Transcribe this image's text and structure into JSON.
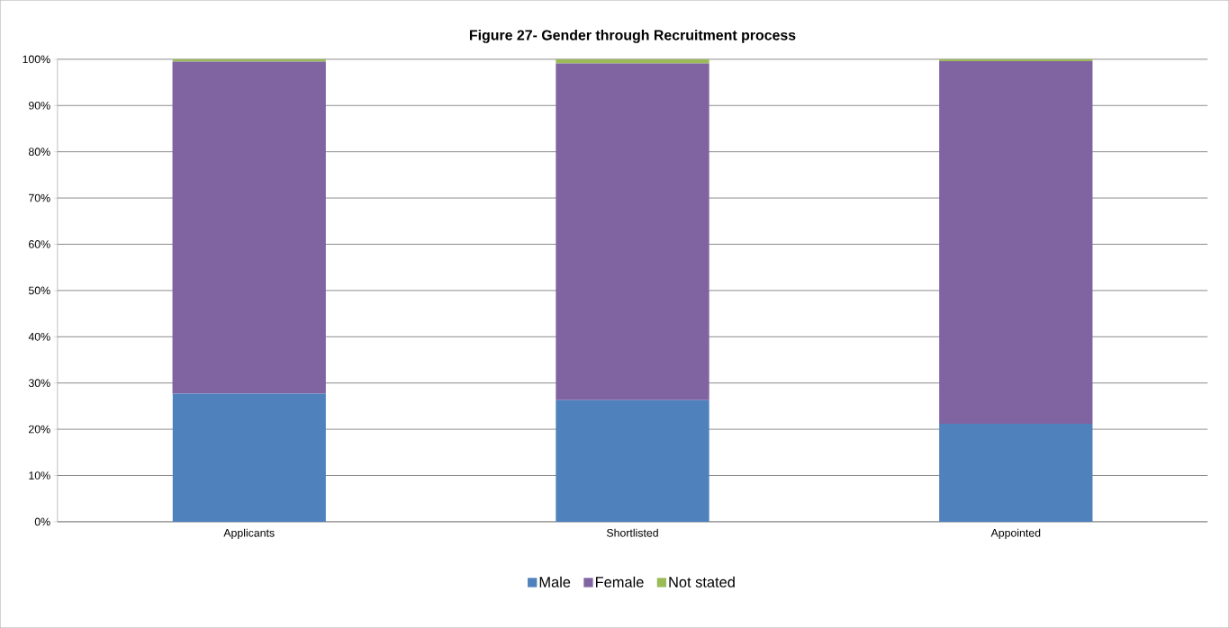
{
  "chart_data": {
    "type": "bar",
    "title": "Figure 27- Gender through Recruitment process",
    "categories": [
      "Applicants",
      "Shortlisted",
      "Appointed"
    ],
    "stacked": true,
    "series": [
      {
        "name": "Male",
        "color": "#4f81bd",
        "values": [
          27.7,
          26.3,
          21.2
        ]
      },
      {
        "name": "Female",
        "color": "#8064a2",
        "values": [
          71.8,
          72.8,
          78.4
        ]
      },
      {
        "name": "Not stated",
        "color": "#9bbb59",
        "values": [
          0.5,
          0.9,
          0.4
        ]
      }
    ],
    "ylim": [
      0,
      100
    ],
    "yticks": [
      {
        "value": 0,
        "label": "0%"
      },
      {
        "value": 10,
        "label": "10%"
      },
      {
        "value": 20,
        "label": "20%"
      },
      {
        "value": 30,
        "label": "30%"
      },
      {
        "value": 40,
        "label": "40%"
      },
      {
        "value": 50,
        "label": "50%"
      },
      {
        "value": 60,
        "label": "60%"
      },
      {
        "value": 70,
        "label": "70%"
      },
      {
        "value": 80,
        "label": "80%"
      },
      {
        "value": 90,
        "label": "90%"
      },
      {
        "value": 100,
        "label": "100%"
      }
    ],
    "grid": "y",
    "legend": "bottom"
  }
}
